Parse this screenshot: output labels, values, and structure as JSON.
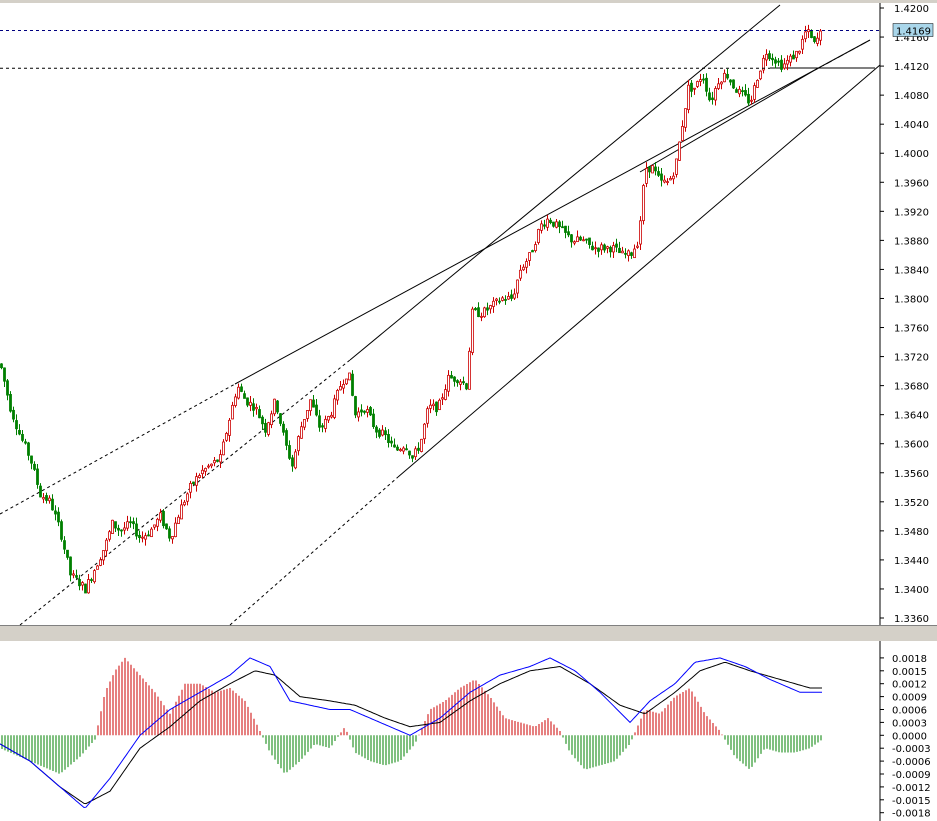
{
  "colors": {
    "background": "#ffffff",
    "frame": "#d4d0c8",
    "bull_candle": "#cc0000",
    "bear_candle": "#008000",
    "trendline": "#000000",
    "level_line": "#000080",
    "price_tag_bg": "#a9d6ea",
    "macd_fast_line": "#0000ff",
    "macd_signal_line": "#000000"
  },
  "chart_data": [
    {
      "type": "candlestick",
      "panel": "price",
      "ylim": [
        1.336,
        1.42
      ],
      "y_tick_labels": [
        "1.4200",
        "1.4160",
        "1.4120",
        "1.4080",
        "1.4040",
        "1.4000",
        "1.3960",
        "1.3920",
        "1.3880",
        "1.3840",
        "1.3800",
        "1.3760",
        "1.3720",
        "1.3680",
        "1.3640",
        "1.3600",
        "1.3560",
        "1.3520",
        "1.3480",
        "1.3440",
        "1.3400",
        "1.3360"
      ],
      "current_price_label": "1.4169",
      "current_price": 1.4169,
      "horizontal_level": 1.4117,
      "path": [
        [
          0,
          1.371
        ],
        [
          10,
          1.365
        ],
        [
          20,
          1.361
        ],
        [
          30,
          1.358
        ],
        [
          40,
          1.353
        ],
        [
          50,
          1.352
        ],
        [
          60,
          1.348
        ],
        [
          70,
          1.342
        ],
        [
          78,
          1.341
        ],
        [
          85,
          1.34
        ],
        [
          95,
          1.343
        ],
        [
          105,
          1.346
        ],
        [
          112,
          1.349
        ],
        [
          120,
          1.348
        ],
        [
          130,
          1.349
        ],
        [
          140,
          1.347
        ],
        [
          150,
          1.348
        ],
        [
          160,
          1.35
        ],
        [
          170,
          1.347
        ],
        [
          180,
          1.351
        ],
        [
          190,
          1.354
        ],
        [
          200,
          1.356
        ],
        [
          210,
          1.357
        ],
        [
          220,
          1.358
        ],
        [
          230,
          1.364
        ],
        [
          237,
          1.368
        ],
        [
          245,
          1.366
        ],
        [
          255,
          1.365
        ],
        [
          265,
          1.362
        ],
        [
          275,
          1.366
        ],
        [
          285,
          1.36
        ],
        [
          292,
          1.357
        ],
        [
          300,
          1.362
        ],
        [
          310,
          1.366
        ],
        [
          320,
          1.362
        ],
        [
          330,
          1.364
        ],
        [
          340,
          1.368
        ],
        [
          348,
          1.37
        ],
        [
          355,
          1.364
        ],
        [
          365,
          1.365
        ],
        [
          375,
          1.362
        ],
        [
          385,
          1.361
        ],
        [
          395,
          1.359
        ],
        [
          405,
          1.36
        ],
        [
          412,
          1.358
        ],
        [
          420,
          1.36
        ],
        [
          428,
          1.365
        ],
        [
          438,
          1.365
        ],
        [
          448,
          1.369
        ],
        [
          458,
          1.369
        ],
        [
          466,
          1.368
        ],
        [
          472,
          1.378
        ],
        [
          482,
          1.378
        ],
        [
          492,
          1.379
        ],
        [
          502,
          1.38
        ],
        [
          512,
          1.38
        ],
        [
          520,
          1.384
        ],
        [
          530,
          1.386
        ],
        [
          540,
          1.39
        ],
        [
          548,
          1.391
        ],
        [
          556,
          1.39
        ],
        [
          564,
          1.389
        ],
        [
          572,
          1.388
        ],
        [
          582,
          1.388
        ],
        [
          592,
          1.387
        ],
        [
          602,
          1.387
        ],
        [
          612,
          1.387
        ],
        [
          622,
          1.386
        ],
        [
          630,
          1.386
        ],
        [
          638,
          1.388
        ],
        [
          645,
          1.398
        ],
        [
          652,
          1.398
        ],
        [
          660,
          1.396
        ],
        [
          668,
          1.396
        ],
        [
          675,
          1.398
        ],
        [
          682,
          1.404
        ],
        [
          688,
          1.409
        ],
        [
          695,
          1.409
        ],
        [
          702,
          1.411
        ],
        [
          710,
          1.407
        ],
        [
          718,
          1.41
        ],
        [
          726,
          1.411
        ],
        [
          734,
          1.409
        ],
        [
          742,
          1.408
        ],
        [
          750,
          1.407
        ],
        [
          758,
          1.411
        ],
        [
          766,
          1.414
        ],
        [
          774,
          1.413
        ],
        [
          782,
          1.412
        ],
        [
          790,
          1.413
        ],
        [
          798,
          1.414
        ],
        [
          806,
          1.417
        ],
        [
          814,
          1.415
        ],
        [
          822,
          1.4169
        ]
      ]
    },
    {
      "type": "macd",
      "panel": "indicator",
      "ylim": [
        -0.0019,
        0.0021
      ],
      "y_tick_labels": [
        "0.0018",
        "0.0015",
        "0.0012",
        "0.0009",
        "0.0006",
        "0.0003",
        "0.0000",
        "-0.0003",
        "-0.0006",
        "-0.0009",
        "-0.0012",
        "-0.0015",
        "-0.0018"
      ],
      "histogram_path": [
        [
          0,
          -0.0003
        ],
        [
          30,
          -0.0006
        ],
        [
          60,
          -0.0009
        ],
        [
          80,
          -0.0005
        ],
        [
          95,
          -0.0001
        ],
        [
          105,
          0.001
        ],
        [
          115,
          0.0015
        ],
        [
          125,
          0.0018
        ],
        [
          140,
          0.0014
        ],
        [
          155,
          0.001
        ],
        [
          170,
          0.0005
        ],
        [
          185,
          0.0012
        ],
        [
          200,
          0.0012
        ],
        [
          215,
          0.001
        ],
        [
          230,
          0.0011
        ],
        [
          245,
          0.0008
        ],
        [
          258,
          0.0002
        ],
        [
          270,
          -0.0004
        ],
        [
          285,
          -0.0009
        ],
        [
          300,
          -0.0006
        ],
        [
          315,
          -0.0002
        ],
        [
          330,
          -0.0003
        ],
        [
          345,
          0.0002
        ],
        [
          355,
          -0.0004
        ],
        [
          370,
          -0.0006
        ],
        [
          385,
          -0.0007
        ],
        [
          400,
          -0.0006
        ],
        [
          415,
          -0.0002
        ],
        [
          430,
          0.0006
        ],
        [
          445,
          0.0008
        ],
        [
          460,
          0.0011
        ],
        [
          475,
          0.0013
        ],
        [
          490,
          0.0009
        ],
        [
          505,
          0.0004
        ],
        [
          520,
          0.0003
        ],
        [
          535,
          0.0002
        ],
        [
          548,
          0.0004
        ],
        [
          560,
          0.0001
        ],
        [
          570,
          -0.0004
        ],
        [
          585,
          -0.0008
        ],
        [
          600,
          -0.0007
        ],
        [
          615,
          -0.0006
        ],
        [
          630,
          -0.0002
        ],
        [
          645,
          0.0006
        ],
        [
          660,
          0.0005
        ],
        [
          675,
          0.0009
        ],
        [
          690,
          0.0011
        ],
        [
          705,
          0.0005
        ],
        [
          720,
          0.0001
        ],
        [
          735,
          -0.0005
        ],
        [
          750,
          -0.0008
        ],
        [
          765,
          -0.0003
        ],
        [
          780,
          -0.0004
        ],
        [
          795,
          -0.0004
        ],
        [
          810,
          -0.0003
        ],
        [
          822,
          -0.0001
        ]
      ],
      "fast_line": [
        [
          0,
          -0.0002
        ],
        [
          30,
          -0.0006
        ],
        [
          60,
          -0.0012
        ],
        [
          85,
          -0.0017
        ],
        [
          110,
          -0.001
        ],
        [
          140,
          0.0
        ],
        [
          170,
          0.0006
        ],
        [
          200,
          0.001
        ],
        [
          230,
          0.0014
        ],
        [
          250,
          0.0018
        ],
        [
          270,
          0.0016
        ],
        [
          290,
          0.0008
        ],
        [
          310,
          0.0007
        ],
        [
          330,
          0.0006
        ],
        [
          350,
          0.0006
        ],
        [
          380,
          0.0003
        ],
        [
          410,
          0.0
        ],
        [
          440,
          0.0004
        ],
        [
          470,
          0.001
        ],
        [
          500,
          0.0014
        ],
        [
          530,
          0.0016
        ],
        [
          550,
          0.0018
        ],
        [
          575,
          0.0015
        ],
        [
          600,
          0.001
        ],
        [
          630,
          0.0003
        ],
        [
          650,
          0.0008
        ],
        [
          675,
          0.0012
        ],
        [
          695,
          0.0017
        ],
        [
          720,
          0.0018
        ],
        [
          745,
          0.0016
        ],
        [
          770,
          0.0013
        ],
        [
          800,
          0.001
        ],
        [
          822,
          0.001
        ]
      ],
      "signal_line": [
        [
          0,
          -0.0002
        ],
        [
          30,
          -0.0006
        ],
        [
          60,
          -0.0012
        ],
        [
          85,
          -0.0016
        ],
        [
          110,
          -0.0013
        ],
        [
          140,
          -0.0003
        ],
        [
          170,
          0.0002
        ],
        [
          200,
          0.0008
        ],
        [
          230,
          0.0012
        ],
        [
          255,
          0.0015
        ],
        [
          275,
          0.0014
        ],
        [
          300,
          0.0009
        ],
        [
          330,
          0.0008
        ],
        [
          355,
          0.0007
        ],
        [
          385,
          0.0004
        ],
        [
          410,
          0.0002
        ],
        [
          440,
          0.0003
        ],
        [
          470,
          0.0008
        ],
        [
          500,
          0.0012
        ],
        [
          530,
          0.0015
        ],
        [
          560,
          0.0016
        ],
        [
          590,
          0.0012
        ],
        [
          620,
          0.0007
        ],
        [
          645,
          0.0005
        ],
        [
          675,
          0.001
        ],
        [
          700,
          0.0015
        ],
        [
          725,
          0.0017
        ],
        [
          750,
          0.0015
        ],
        [
          780,
          0.0013
        ],
        [
          810,
          0.0011
        ],
        [
          822,
          0.0011
        ]
      ]
    }
  ]
}
